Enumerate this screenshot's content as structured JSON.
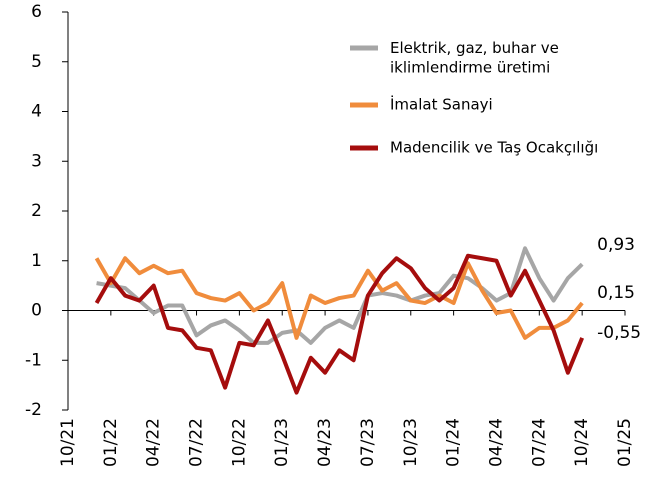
{
  "chart_data": {
    "type": "line",
    "categories": [
      "10/21",
      null,
      null,
      "01/22",
      null,
      null,
      "04/22",
      null,
      null,
      "07/22",
      null,
      null,
      "10/22",
      null,
      null,
      "01/23",
      null,
      null,
      "04/23",
      null,
      null,
      "07/23",
      null,
      null,
      "10/23",
      null,
      null,
      "01/24",
      null,
      null,
      "04/24",
      null,
      null,
      "07/24",
      null,
      null,
      "10/24",
      null,
      null,
      "01/25"
    ],
    "ylim": [
      -2,
      6
    ],
    "yticks": [
      -2,
      -1,
      0,
      1,
      2,
      3,
      4,
      5,
      6
    ],
    "legend": "upper right",
    "series": [
      {
        "name": "Elektrik, gaz, buhar ve\niklimlendirme üretimi",
        "color": "#a6a6a6",
        "values": [
          null,
          null,
          0.55,
          0.5,
          0.45,
          0.2,
          -0.05,
          0.1,
          0.1,
          -0.5,
          -0.3,
          -0.2,
          -0.4,
          -0.65,
          -0.65,
          -0.45,
          -0.4,
          -0.65,
          -0.35,
          -0.2,
          -0.35,
          0.3,
          0.35,
          0.3,
          0.2,
          0.3,
          0.35,
          0.7,
          0.65,
          0.45,
          0.2,
          0.35,
          1.25,
          0.65,
          0.2,
          0.65,
          0.93,
          null,
          null,
          null
        ],
        "value_labels": [
          null,
          null,
          null,
          null,
          null,
          null,
          null,
          null,
          null,
          null,
          null,
          null,
          null,
          null,
          null,
          null,
          null,
          null,
          null,
          null,
          null,
          null,
          null,
          null,
          null,
          null,
          null,
          null,
          null,
          null,
          null,
          null,
          null,
          null,
          null,
          null,
          "0,93",
          null,
          null,
          null
        ]
      },
      {
        "name": "İmalat Sanayi",
        "color": "#f08c3c",
        "values": [
          null,
          null,
          1.05,
          0.55,
          1.05,
          0.75,
          0.9,
          0.75,
          0.8,
          0.35,
          0.25,
          0.2,
          0.35,
          0.0,
          0.15,
          0.55,
          -0.55,
          0.3,
          0.15,
          0.25,
          0.3,
          0.8,
          0.4,
          0.55,
          0.2,
          0.15,
          0.3,
          0.15,
          0.95,
          0.4,
          -0.05,
          0.0,
          -0.55,
          -0.35,
          -0.35,
          -0.2,
          0.15,
          null,
          null,
          null
        ],
        "value_labels": [
          null,
          null,
          null,
          null,
          null,
          null,
          null,
          null,
          null,
          null,
          null,
          null,
          null,
          null,
          null,
          null,
          null,
          null,
          null,
          null,
          null,
          null,
          null,
          null,
          null,
          null,
          null,
          null,
          null,
          null,
          null,
          null,
          null,
          null,
          null,
          null,
          "0,15",
          null,
          null,
          null
        ]
      },
      {
        "name": "Madencilik ve Taş Ocakçılığı",
        "color": "#a50d0d",
        "values": [
          null,
          null,
          0.15,
          0.65,
          0.3,
          0.2,
          0.5,
          -0.35,
          -0.4,
          -0.75,
          -0.8,
          -1.55,
          -0.65,
          -0.7,
          -0.2,
          -0.9,
          -1.65,
          -0.95,
          -1.25,
          -0.8,
          -1.0,
          0.3,
          0.75,
          1.05,
          0.85,
          0.45,
          0.2,
          0.45,
          1.1,
          1.05,
          1.0,
          0.3,
          0.8,
          0.2,
          -0.4,
          -1.25,
          -0.55,
          null,
          null,
          null
        ],
        "value_labels": [
          null,
          null,
          null,
          null,
          null,
          null,
          null,
          null,
          null,
          null,
          null,
          null,
          null,
          null,
          null,
          null,
          null,
          null,
          null,
          null,
          null,
          null,
          null,
          null,
          null,
          null,
          null,
          null,
          null,
          null,
          null,
          null,
          null,
          null,
          null,
          null,
          "-0,55",
          null,
          null,
          null
        ]
      }
    ]
  }
}
